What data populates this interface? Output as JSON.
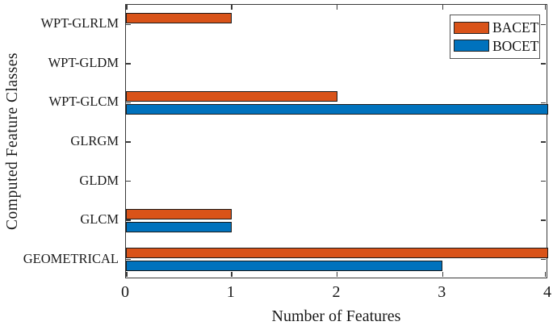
{
  "chart_data": {
    "type": "bar",
    "orientation": "horizontal",
    "title": "",
    "xlabel": "Number of Features",
    "ylabel": "Computed Feature Classes",
    "categories": [
      "WPT-GLRLM",
      "WPT-GLDM",
      "WPT-GLCM",
      "GLRGM",
      "GLDM",
      "GLCM",
      "GEOMETRICAL"
    ],
    "series": [
      {
        "name": "BACET",
        "color": "#d95319",
        "values": [
          1,
          0,
          2,
          0,
          0,
          1,
          4
        ]
      },
      {
        "name": "BOCET",
        "color": "#0072bd",
        "values": [
          0,
          0,
          4,
          0,
          0,
          1,
          3
        ]
      }
    ],
    "xlim": [
      0,
      4
    ],
    "xticks": [
      0,
      1,
      2,
      3,
      4
    ],
    "xtick_labels": [
      "0",
      "1",
      "2",
      "3",
      "4"
    ],
    "grid": false,
    "legend_position": "top-right",
    "axis_color": "#3a3a3a",
    "bar_edge_color": "#1a1a1a",
    "background_color": "#ffffff"
  }
}
